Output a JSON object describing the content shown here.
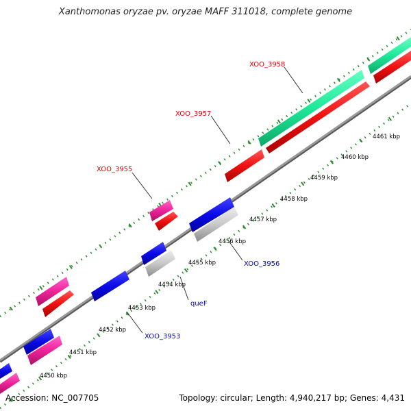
{
  "title": "Xanthomonas oryzae pv. oryzae MAFF 311018, complete genome",
  "accession_text": "Accession: NC_007705",
  "summary_text": "Topology: circular; Length: 4,940,217 bp; Genes: 4,431",
  "colors": {
    "backbone": "#8c8c8c",
    "tick": "#2e8b2e",
    "forward_label": "#dd0000",
    "reverse_label": "#0000cc",
    "leader": "#333333"
  },
  "scale": {
    "unit": "kbp",
    "labels": [
      "4450 kbp",
      "4451 kbp",
      "4452 kbp",
      "4453 kbp",
      "4454 kbp",
      "4455 kbp",
      "4456 kbp",
      "4457 kbp",
      "4458 kbp",
      "4459 kbp",
      "4460 kbp",
      "4461 kbp"
    ]
  },
  "features": {
    "forward": [
      {
        "name": "XOO_3958",
        "color": "mint",
        "labeled": true
      },
      {
        "name": "XOO_3957",
        "color": "red",
        "labeled": true
      },
      {
        "name": "XOO_3955",
        "color": "pink",
        "labeled": true
      }
    ],
    "reverse": [
      {
        "name": "XOO_3956",
        "color": "blue",
        "labeled": true
      },
      {
        "name": "queF",
        "color": "grey",
        "labeled": true
      },
      {
        "name": "XOO_3953",
        "color": "blue",
        "labeled": true
      }
    ]
  }
}
